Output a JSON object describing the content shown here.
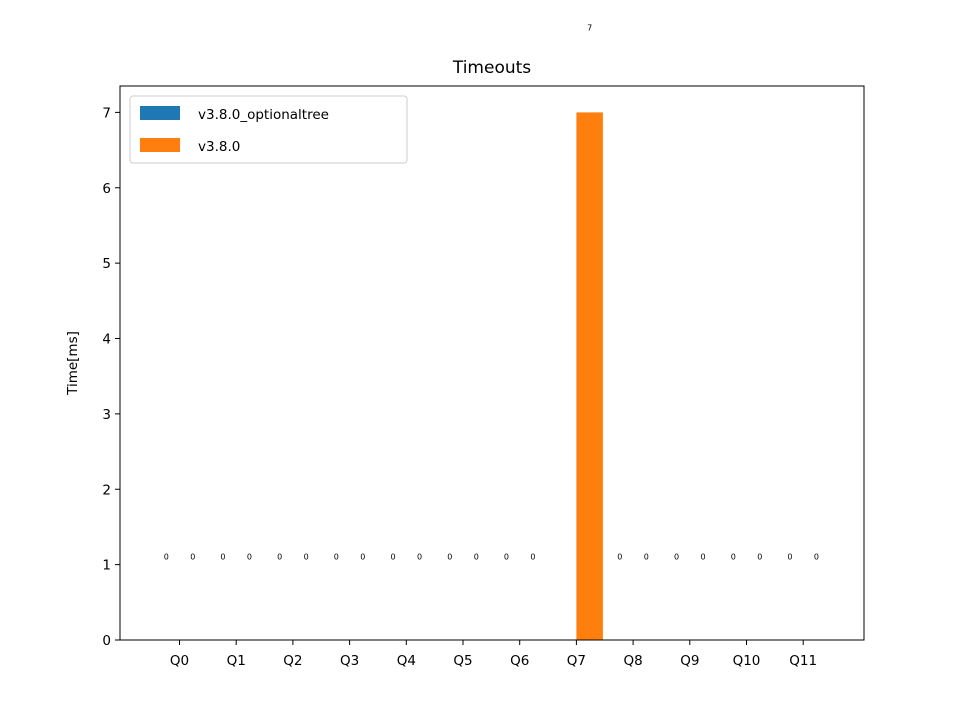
{
  "chart_data": {
    "type": "bar",
    "title": "Timeouts",
    "xlabel": "",
    "ylabel": "Time[ms]",
    "categories": [
      "Q0",
      "Q1",
      "Q2",
      "Q3",
      "Q4",
      "Q5",
      "Q6",
      "Q7",
      "Q8",
      "Q9",
      "Q10",
      "Q11"
    ],
    "series": [
      {
        "name": "v3.8.0_optionaltree",
        "color": "#1f77b4",
        "values": [
          0,
          0,
          0,
          0,
          0,
          0,
          0,
          0,
          0,
          0,
          0,
          0
        ]
      },
      {
        "name": "v3.8.0",
        "color": "#ff7f0e",
        "values": [
          0,
          0,
          0,
          0,
          0,
          0,
          0,
          7,
          0,
          0,
          0,
          0
        ]
      }
    ],
    "bar_labels": [
      [
        "0",
        "0",
        "0",
        "0",
        "0",
        "0",
        "0",
        "",
        "0",
        "0",
        "0",
        "0"
      ],
      [
        "0",
        "0",
        "0",
        "0",
        "0",
        "0",
        "0",
        "7",
        "0",
        "0",
        "0",
        "0"
      ]
    ],
    "bar_label_value_position": 1.0,
    "ylim": [
      0,
      7.35
    ],
    "yticks": [
      0,
      1,
      2,
      3,
      4,
      5,
      6,
      7
    ],
    "legend": "upper-left",
    "grid": false
  }
}
